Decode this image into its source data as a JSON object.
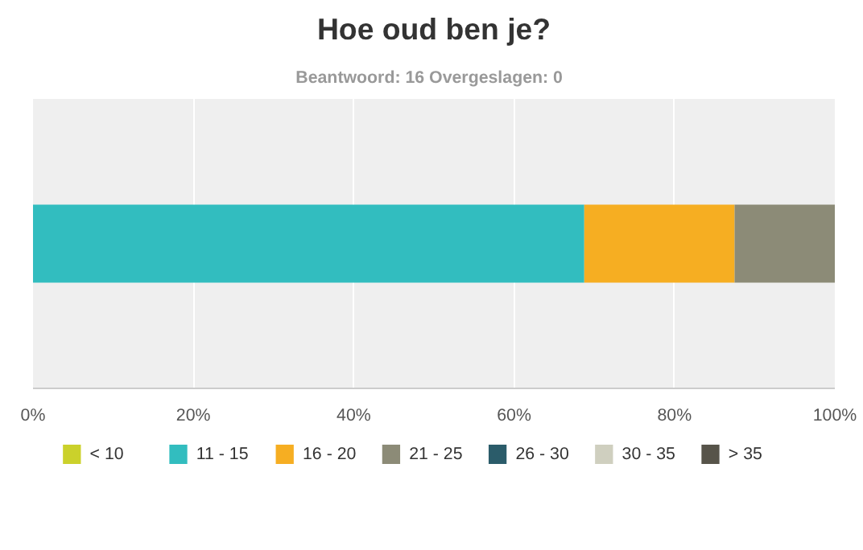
{
  "chart_data": {
    "type": "bar",
    "orientation": "horizontal",
    "stacked": true,
    "title": "Hoe oud ben je?",
    "subtitle": "Beantwoord: 16   Overgeslagen: 0",
    "categories": [
      null
    ],
    "series": [
      {
        "name": "< 10",
        "color": "#cbd12b",
        "values": [
          0
        ]
      },
      {
        "name": "11 - 15",
        "color": "#32bdbf",
        "values": [
          68.75
        ]
      },
      {
        "name": "16 - 20",
        "color": "#f6ae22",
        "values": [
          18.75
        ]
      },
      {
        "name": "21 - 25",
        "color": "#8c8b77",
        "values": [
          12.5
        ]
      },
      {
        "name": "26 - 30",
        "color": "#2b5c6a",
        "values": [
          0
        ]
      },
      {
        "name": "30 - 35",
        "color": "#cfcfbf",
        "values": [
          0
        ]
      },
      {
        "name": "> 35",
        "color": "#57544a",
        "values": [
          0
        ]
      }
    ],
    "xlim": [
      0,
      100
    ],
    "xticks": [
      {
        "value": 0,
        "label": "0%"
      },
      {
        "value": 20,
        "label": "20%"
      },
      {
        "value": 40,
        "label": "40%"
      },
      {
        "value": 60,
        "label": "60%"
      },
      {
        "value": 80,
        "label": "80%"
      },
      {
        "value": 100,
        "label": "100%"
      }
    ],
    "grid": "x",
    "legend": "bottom"
  }
}
